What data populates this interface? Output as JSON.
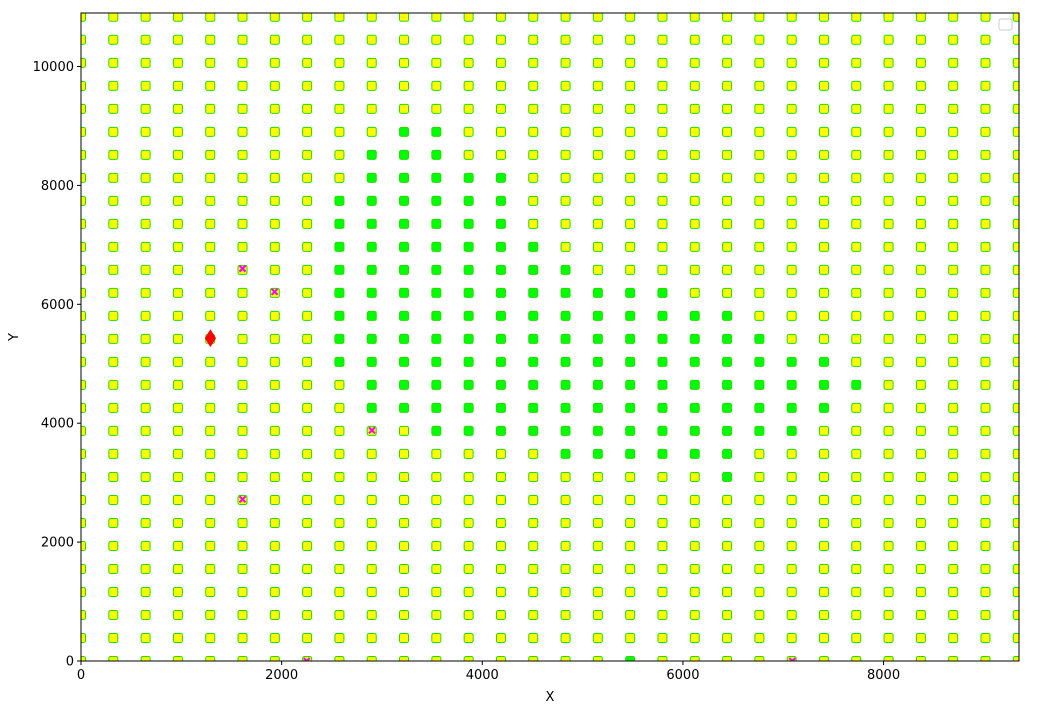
{
  "chart_data": {
    "type": "scatter",
    "title": "",
    "xlabel": "X",
    "ylabel": "Y",
    "xlim": [
      0,
      9350
    ],
    "ylim": [
      0,
      10900
    ],
    "xticks": [
      0,
      2000,
      4000,
      6000,
      8000
    ],
    "yticks": [
      0,
      2000,
      4000,
      6000,
      8000,
      10000
    ],
    "xtick_labels": [
      "0",
      "2000",
      "4000",
      "6000",
      "8000"
    ],
    "ytick_labels": [
      "0",
      "2000",
      "4000",
      "6000",
      "8000",
      "10000"
    ],
    "legend": {
      "position": "top-right",
      "entries": []
    },
    "grid": false,
    "grid_points": {
      "x_start": 0,
      "x_step": 322,
      "x_count": 30,
      "y_start": 0,
      "y_step": 387,
      "y_count": 29
    },
    "colors": {
      "point_edge": "#22dd00",
      "point_fill": "#ffff00",
      "highlight_fill": "#00ff00",
      "cross_marker": "#ff00ff",
      "diamond_marker": "#ff0000"
    },
    "highlight_points": [
      [
        3220,
        8930
      ],
      [
        3540,
        8930
      ],
      [
        2900,
        8540
      ],
      [
        3220,
        8540
      ],
      [
        3540,
        8540
      ],
      [
        2900,
        8150
      ],
      [
        3220,
        8150
      ],
      [
        3540,
        8150
      ],
      [
        3870,
        8150
      ],
      [
        4190,
        8150
      ],
      [
        2580,
        7760
      ],
      [
        2900,
        7760
      ],
      [
        3220,
        7760
      ],
      [
        3540,
        7760
      ],
      [
        3870,
        7760
      ],
      [
        4190,
        7760
      ],
      [
        2580,
        7380
      ],
      [
        2900,
        7380
      ],
      [
        3220,
        7380
      ],
      [
        3540,
        7380
      ],
      [
        3870,
        7380
      ],
      [
        4190,
        7380
      ],
      [
        2580,
        6990
      ],
      [
        2900,
        6990
      ],
      [
        3220,
        6990
      ],
      [
        3540,
        6990
      ],
      [
        3870,
        6990
      ],
      [
        4190,
        6990
      ],
      [
        4510,
        6990
      ],
      [
        2580,
        6600
      ],
      [
        2900,
        6600
      ],
      [
        3220,
        6600
      ],
      [
        3540,
        6600
      ],
      [
        3870,
        6600
      ],
      [
        4190,
        6600
      ],
      [
        4510,
        6600
      ],
      [
        4830,
        6600
      ],
      [
        2580,
        6210
      ],
      [
        2900,
        6210
      ],
      [
        3220,
        6210
      ],
      [
        3540,
        6210
      ],
      [
        3870,
        6210
      ],
      [
        4190,
        6210
      ],
      [
        4510,
        6210
      ],
      [
        4830,
        6210
      ],
      [
        5160,
        6210
      ],
      [
        5480,
        6210
      ],
      [
        5800,
        6210
      ],
      [
        2580,
        5820
      ],
      [
        2900,
        5820
      ],
      [
        3220,
        5820
      ],
      [
        3540,
        5820
      ],
      [
        3870,
        5820
      ],
      [
        4190,
        5820
      ],
      [
        4510,
        5820
      ],
      [
        4830,
        5820
      ],
      [
        5160,
        5820
      ],
      [
        5480,
        5820
      ],
      [
        5800,
        5820
      ],
      [
        6120,
        5820
      ],
      [
        6440,
        5820
      ],
      [
        2580,
        5430
      ],
      [
        2900,
        5430
      ],
      [
        3220,
        5430
      ],
      [
        3540,
        5430
      ],
      [
        3870,
        5430
      ],
      [
        4190,
        5430
      ],
      [
        4510,
        5430
      ],
      [
        4830,
        5430
      ],
      [
        5160,
        5430
      ],
      [
        5480,
        5430
      ],
      [
        5800,
        5430
      ],
      [
        6120,
        5430
      ],
      [
        6440,
        5430
      ],
      [
        6770,
        5430
      ],
      [
        2580,
        5040
      ],
      [
        2900,
        5040
      ],
      [
        3220,
        5040
      ],
      [
        3540,
        5040
      ],
      [
        3870,
        5040
      ],
      [
        4190,
        5040
      ],
      [
        4510,
        5040
      ],
      [
        4830,
        5040
      ],
      [
        5160,
        5040
      ],
      [
        5480,
        5040
      ],
      [
        5800,
        5040
      ],
      [
        6120,
        5040
      ],
      [
        6440,
        5040
      ],
      [
        6770,
        5040
      ],
      [
        7090,
        5040
      ],
      [
        7410,
        5040
      ],
      [
        2900,
        4660
      ],
      [
        3220,
        4660
      ],
      [
        3540,
        4660
      ],
      [
        3870,
        4660
      ],
      [
        4190,
        4660
      ],
      [
        4510,
        4660
      ],
      [
        4830,
        4660
      ],
      [
        5160,
        4660
      ],
      [
        5480,
        4660
      ],
      [
        5800,
        4660
      ],
      [
        6120,
        4660
      ],
      [
        6440,
        4660
      ],
      [
        6770,
        4660
      ],
      [
        7090,
        4660
      ],
      [
        7410,
        4660
      ],
      [
        7730,
        4660
      ],
      [
        2900,
        4270
      ],
      [
        3220,
        4270
      ],
      [
        3540,
        4270
      ],
      [
        3870,
        4270
      ],
      [
        4190,
        4270
      ],
      [
        4510,
        4270
      ],
      [
        4830,
        4270
      ],
      [
        5160,
        4270
      ],
      [
        5480,
        4270
      ],
      [
        5800,
        4270
      ],
      [
        6120,
        4270
      ],
      [
        6440,
        4270
      ],
      [
        6770,
        4270
      ],
      [
        7090,
        4270
      ],
      [
        7410,
        4270
      ],
      [
        3540,
        3880
      ],
      [
        3870,
        3880
      ],
      [
        4190,
        3880
      ],
      [
        4510,
        3880
      ],
      [
        4830,
        3880
      ],
      [
        5160,
        3880
      ],
      [
        5480,
        3880
      ],
      [
        5800,
        3880
      ],
      [
        6120,
        3880
      ],
      [
        6440,
        3880
      ],
      [
        6770,
        3880
      ],
      [
        7090,
        3880
      ],
      [
        4830,
        3490
      ],
      [
        5160,
        3490
      ],
      [
        5480,
        3490
      ],
      [
        5800,
        3490
      ],
      [
        6120,
        3490
      ],
      [
        6440,
        3490
      ],
      [
        6440,
        3100
      ],
      [
        5480,
        0
      ]
    ],
    "cross_points": [
      [
        1610,
        6600
      ],
      [
        1930,
        6210
      ],
      [
        2900,
        3880
      ],
      [
        1610,
        2720
      ],
      [
        2250,
        0
      ],
      [
        7090,
        0
      ]
    ],
    "diamond_points": [
      [
        1290,
        5430
      ]
    ]
  }
}
